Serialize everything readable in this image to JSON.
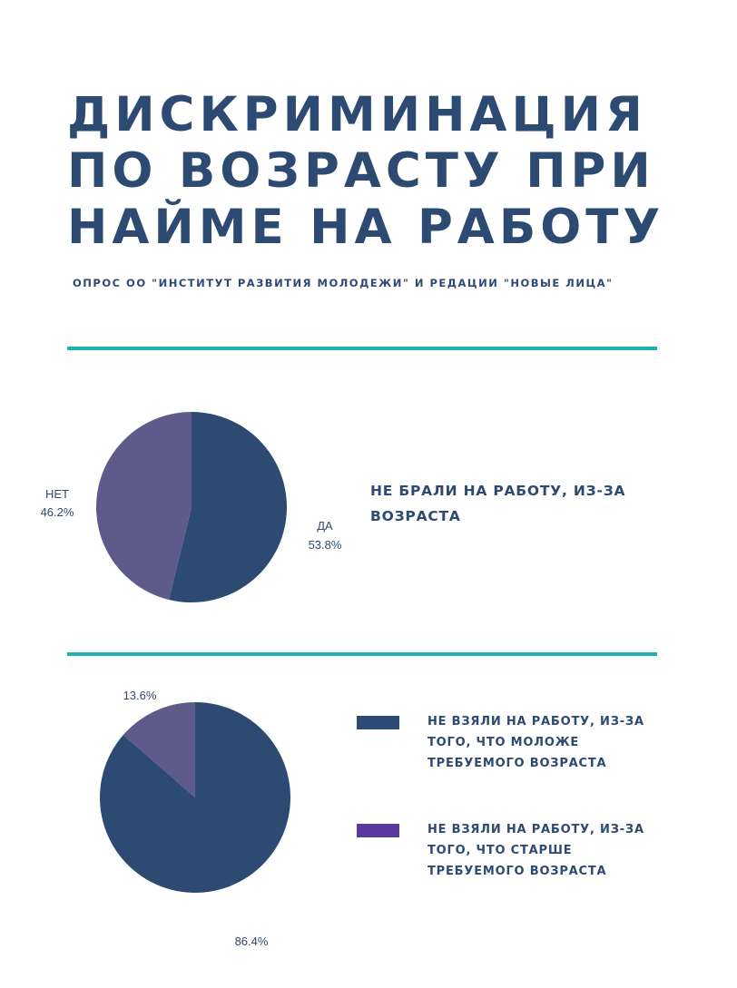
{
  "header": {
    "title_lines": [
      "ДИСКРИМИНАЦИЯ",
      "ПО ВОЗРАСТУ ПРИ",
      "НАЙМЕ НА РАБОТУ"
    ],
    "subtitle": "ОПРОС ОО \"ИНСТИТУТ РАЗВИТИЯ МОЛОДЕЖИ\" И РЕДАЦИИ \"НОВЫЕ ЛИЦА\""
  },
  "colors": {
    "accent_line": "#1fb0b3",
    "navy": "#2c4a72",
    "purple_slice": "#5e5a8a",
    "legend_purple": "#5b3aa0"
  },
  "chart_data": [
    {
      "type": "pie",
      "title": "НЕ БРАЛИ НА РАБОТУ, ИЗ-ЗА ВОЗРАСТА",
      "slices": [
        {
          "name": "ДА",
          "value": 53.8,
          "label": "53.8%"
        },
        {
          "name": "НЕТ",
          "value": 46.2,
          "label": "46.2%"
        }
      ]
    },
    {
      "type": "pie",
      "slices": [
        {
          "name": "НЕ ВЗЯЛИ НА РАБОТУ, ИЗ-ЗА ТОГО, ЧТО МОЛОЖЕ ТРЕБУЕМОГО ВОЗРАСТА",
          "value": 86.4,
          "label": "86.4%"
        },
        {
          "name": "НЕ ВЗЯЛИ НА РАБОТУ, ИЗ-ЗА ТОГО, ЧТО СТАРШЕ ТРЕБУЕМОГО ВОЗРАСТА",
          "value": 13.6,
          "label": "13.6%"
        }
      ],
      "legend": [
        "НЕ ВЗЯЛИ НА РАБОТУ, ИЗ-ЗА ТОГО, ЧТО МОЛОЖЕ ТРЕБУЕМОГО ВОЗРАСТА",
        "НЕ ВЗЯЛИ НА РАБОТУ, ИЗ-ЗА ТОГО, ЧТО СТАРШЕ ТРЕБУЕМОГО ВОЗРАСТА"
      ]
    }
  ]
}
